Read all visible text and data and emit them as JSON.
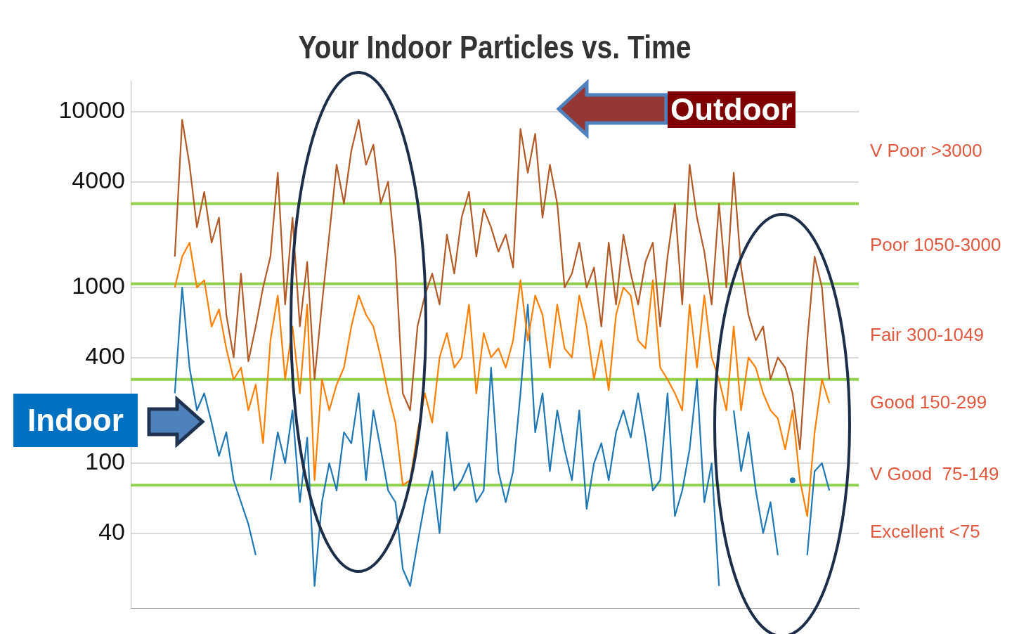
{
  "chart_data": {
    "type": "line",
    "title": "Your Indoor Particles vs. Time",
    "categories": [
      null,
      null,
      null,
      null,
      null,
      null,
      null,
      null,
      null,
      null,
      null,
      null,
      null,
      null,
      null,
      null,
      null,
      null,
      null,
      null,
      null,
      null,
      null,
      null,
      null,
      null,
      null,
      null,
      null,
      null,
      null,
      null,
      null,
      null,
      null,
      null,
      null,
      null,
      null,
      null,
      null,
      null,
      null,
      null,
      null,
      null,
      null,
      null,
      null,
      null,
      null,
      null,
      null,
      null,
      null,
      null,
      null,
      null,
      null,
      null,
      null,
      null,
      null,
      null,
      null,
      null,
      null,
      null,
      null,
      null,
      null,
      null,
      null,
      null,
      null,
      null,
      null,
      null,
      null,
      null,
      null,
      null,
      null,
      null,
      null,
      null,
      null,
      null,
      null,
      null,
      null,
      null,
      null,
      null,
      null,
      null,
      null,
      null,
      null,
      null
    ],
    "series": [
      {
        "name": "Outdoor",
        "color": "#b35a27",
        "values": [
          null,
          null,
          null,
          null,
          null,
          null,
          1500,
          9000,
          5000,
          2200,
          3500,
          1800,
          2500,
          700,
          400,
          1200,
          380,
          600,
          1000,
          1500,
          4500,
          800,
          2500,
          600,
          1400,
          300,
          800,
          2000,
          5000,
          3000,
          6000,
          9000,
          5000,
          6500,
          3000,
          4000,
          1500,
          250,
          200,
          600,
          900,
          1200,
          800,
          2000,
          1200,
          2500,
          3500,
          1500,
          2800,
          2200,
          1600,
          2000,
          1300,
          8000,
          4500,
          7500,
          2500,
          5000,
          3000,
          1000,
          1200,
          1800,
          1000,
          1300,
          600,
          1800,
          800,
          2000,
          1200,
          800,
          1400,
          1800,
          600,
          1500,
          3000,
          800,
          5000,
          2500,
          1600,
          800,
          3000,
          1000,
          4500,
          1300,
          700,
          500,
          600,
          300,
          400,
          350,
          250,
          120,
          500,
          1500,
          1000,
          300,
          null,
          null,
          null,
          null
        ]
      },
      {
        "color": "#ff8000",
        "values": [
          null,
          null,
          null,
          null,
          null,
          null,
          1000,
          1500,
          1800,
          1000,
          1100,
          600,
          750,
          450,
          300,
          350,
          200,
          280,
          130,
          500,
          900,
          300,
          600,
          250,
          800,
          80,
          300,
          200,
          280,
          350,
          600,
          900,
          700,
          600,
          400,
          250,
          170,
          75,
          80,
          150,
          250,
          170,
          400,
          550,
          350,
          400,
          800,
          250,
          550,
          400,
          450,
          350,
          500,
          1100,
          500,
          900,
          700,
          350,
          800,
          450,
          400,
          900,
          600,
          300,
          500,
          260,
          700,
          1000,
          900,
          500,
          450,
          1100,
          350,
          300,
          250,
          200,
          800,
          350,
          900,
          400,
          300,
          200,
          600,
          200,
          400,
          350,
          250,
          200,
          180,
          120,
          200,
          80,
          50,
          150,
          300,
          220,
          null,
          null,
          null,
          null
        ]
      },
      {
        "name": "Indoor",
        "color": "#1f77b4",
        "values": [
          null,
          null,
          null,
          null,
          null,
          null,
          250,
          1000,
          350,
          200,
          250,
          170,
          110,
          150,
          80,
          60,
          45,
          30,
          null,
          80,
          150,
          100,
          200,
          60,
          140,
          20,
          60,
          100,
          70,
          150,
          130,
          250,
          80,
          200,
          120,
          70,
          60,
          25,
          20,
          35,
          60,
          90,
          40,
          150,
          70,
          80,
          100,
          60,
          70,
          350,
          90,
          60,
          90,
          250,
          800,
          150,
          250,
          90,
          200,
          120,
          80,
          200,
          55,
          100,
          130,
          80,
          150,
          200,
          140,
          250,
          140,
          70,
          80,
          250,
          50,
          70,
          120,
          300,
          60,
          100,
          20,
          null,
          200,
          90,
          150,
          70,
          40,
          60,
          30,
          null,
          80,
          null,
          30,
          90,
          100,
          70,
          null,
          null,
          null,
          null
        ]
      }
    ],
    "log": true,
    "ylim": [
      15,
      15000
    ],
    "yticks": [
      40,
      100,
      400,
      1000,
      4000,
      10000
    ],
    "grid": "y",
    "legend": false,
    "tick_labels": "y",
    "marker": "none",
    "line_style": "solid",
    "ref_lines": [
      {
        "axis": "y",
        "value": 3000,
        "color": "#92d050"
      },
      {
        "axis": "y",
        "value": 1050,
        "color": "#92d050"
      },
      {
        "axis": "y",
        "value": 300,
        "color": "#92d050"
      },
      {
        "axis": "y",
        "value": 75,
        "color": "#92d050"
      }
    ],
    "annotations": [
      "V Poor >3000",
      "Poor 1050-3000",
      "Fair 300-1049",
      "Good 150-299",
      "V Good  75-149",
      "Excellent <75"
    ]
  }
}
